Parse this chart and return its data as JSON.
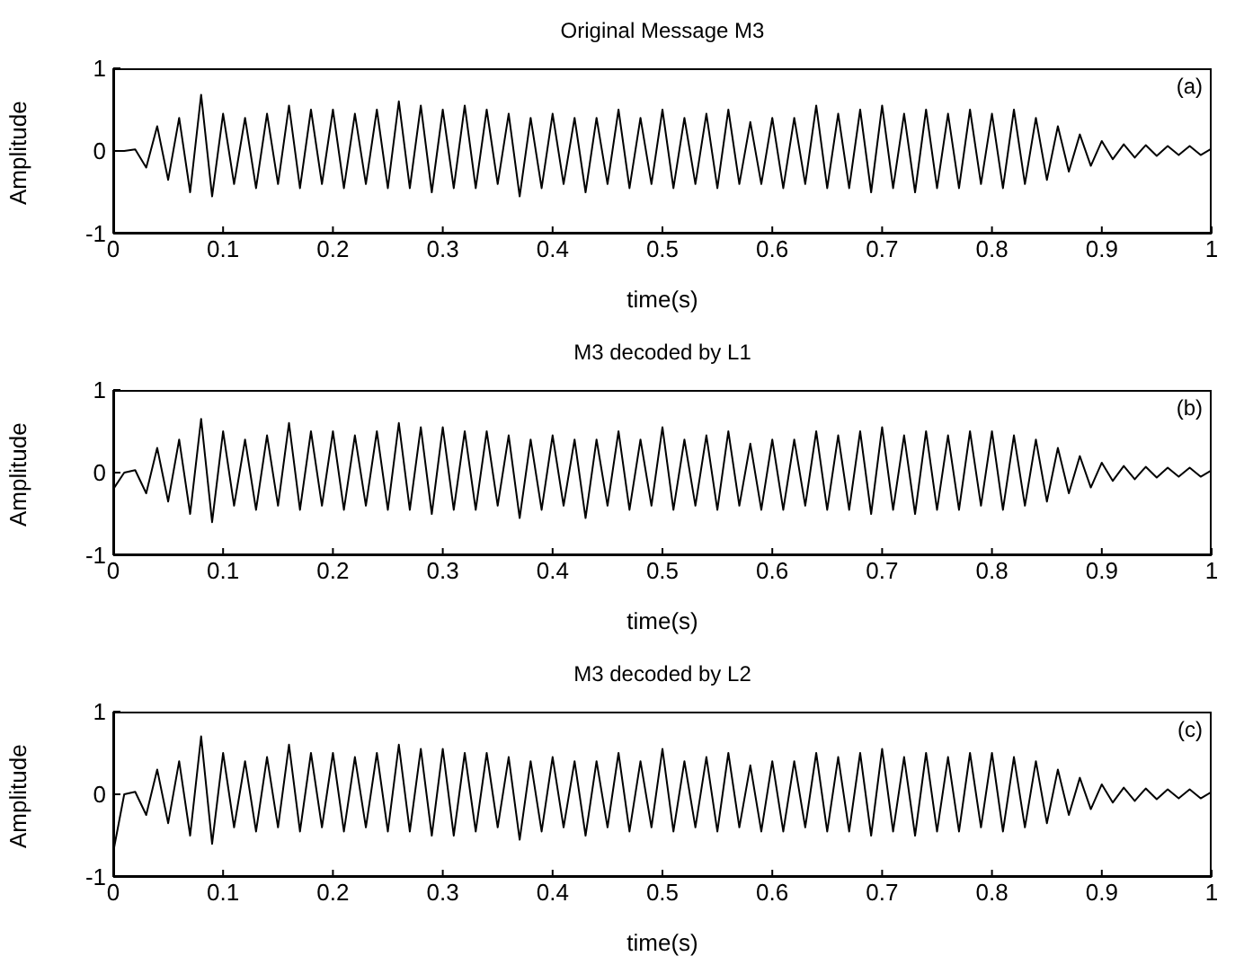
{
  "chart_data": [
    {
      "type": "line",
      "title": "Original Message M3",
      "xlabel": "time(s)",
      "ylabel": "Amplitude",
      "annotations": [
        "(a)"
      ],
      "xlim": [
        0,
        1
      ],
      "xticks": [
        0,
        0.1,
        0.2,
        0.3,
        0.4,
        0.5,
        0.6,
        0.7,
        0.8,
        0.9,
        1
      ],
      "ylim": [
        -1,
        1
      ],
      "yticks": [
        -1,
        0,
        1
      ],
      "grid": false,
      "legend": false,
      "marker": "none",
      "x": [
        0,
        0.01,
        0.02,
        0.03,
        0.04,
        0.05,
        0.06,
        0.07,
        0.08,
        0.09,
        0.1,
        0.11,
        0.12,
        0.13,
        0.14,
        0.15,
        0.16,
        0.17,
        0.18,
        0.19,
        0.2,
        0.21,
        0.22,
        0.23,
        0.24,
        0.25,
        0.26,
        0.27,
        0.28,
        0.29,
        0.3,
        0.31,
        0.32,
        0.33,
        0.34,
        0.35,
        0.36,
        0.37,
        0.38,
        0.39,
        0.4,
        0.41,
        0.42,
        0.43,
        0.44,
        0.45,
        0.46,
        0.47,
        0.48,
        0.49,
        0.5,
        0.51,
        0.52,
        0.53,
        0.54,
        0.55,
        0.56,
        0.57,
        0.58,
        0.59,
        0.6,
        0.61,
        0.62,
        0.63,
        0.64,
        0.65,
        0.66,
        0.67,
        0.68,
        0.69,
        0.7,
        0.71,
        0.72,
        0.73,
        0.74,
        0.75,
        0.76,
        0.77,
        0.78,
        0.79,
        0.8,
        0.81,
        0.82,
        0.83,
        0.84,
        0.85,
        0.86,
        0.87,
        0.88,
        0.89,
        0.9,
        0.91,
        0.92,
        0.93,
        0.94,
        0.95,
        0.96,
        0.97,
        0.98,
        0.99,
        1
      ],
      "series": [
        {
          "color": "#000000",
          "values": [
            0,
            0,
            0.02,
            -0.2,
            0.3,
            -0.35,
            0.4,
            -0.5,
            0.68,
            -0.55,
            0.45,
            -0.4,
            0.4,
            -0.45,
            0.45,
            -0.4,
            0.55,
            -0.45,
            0.5,
            -0.4,
            0.5,
            -0.45,
            0.45,
            -0.4,
            0.5,
            -0.45,
            0.6,
            -0.45,
            0.55,
            -0.5,
            0.5,
            -0.45,
            0.55,
            -0.45,
            0.5,
            -0.4,
            0.45,
            -0.55,
            0.4,
            -0.45,
            0.45,
            -0.4,
            0.4,
            -0.5,
            0.4,
            -0.4,
            0.5,
            -0.45,
            0.4,
            -0.4,
            0.5,
            -0.45,
            0.4,
            -0.4,
            0.45,
            -0.45,
            0.5,
            -0.4,
            0.35,
            -0.4,
            0.4,
            -0.45,
            0.4,
            -0.4,
            0.55,
            -0.45,
            0.45,
            -0.45,
            0.5,
            -0.5,
            0.55,
            -0.45,
            0.45,
            -0.5,
            0.5,
            -0.45,
            0.45,
            -0.45,
            0.5,
            -0.4,
            0.45,
            -0.45,
            0.5,
            -0.4,
            0.4,
            -0.35,
            0.3,
            -0.25,
            0.2,
            -0.18,
            0.12,
            -0.1,
            0.08,
            -0.08,
            0.07,
            -0.06,
            0.06,
            -0.05,
            0.06,
            -0.05,
            0.03
          ]
        }
      ]
    },
    {
      "type": "line",
      "title": "M3 decoded by L1",
      "xlabel": "time(s)",
      "ylabel": "Amplitude",
      "annotations": [
        "(b)"
      ],
      "xlim": [
        0,
        1
      ],
      "xticks": [
        0,
        0.1,
        0.2,
        0.3,
        0.4,
        0.5,
        0.6,
        0.7,
        0.8,
        0.9,
        1
      ],
      "ylim": [
        -1,
        1
      ],
      "yticks": [
        -1,
        0,
        1
      ],
      "grid": false,
      "legend": false,
      "marker": "none",
      "x": [
        0,
        0.01,
        0.02,
        0.03,
        0.04,
        0.05,
        0.06,
        0.07,
        0.08,
        0.09,
        0.1,
        0.11,
        0.12,
        0.13,
        0.14,
        0.15,
        0.16,
        0.17,
        0.18,
        0.19,
        0.2,
        0.21,
        0.22,
        0.23,
        0.24,
        0.25,
        0.26,
        0.27,
        0.28,
        0.29,
        0.3,
        0.31,
        0.32,
        0.33,
        0.34,
        0.35,
        0.36,
        0.37,
        0.38,
        0.39,
        0.4,
        0.41,
        0.42,
        0.43,
        0.44,
        0.45,
        0.46,
        0.47,
        0.48,
        0.49,
        0.5,
        0.51,
        0.52,
        0.53,
        0.54,
        0.55,
        0.56,
        0.57,
        0.58,
        0.59,
        0.6,
        0.61,
        0.62,
        0.63,
        0.64,
        0.65,
        0.66,
        0.67,
        0.68,
        0.69,
        0.7,
        0.71,
        0.72,
        0.73,
        0.74,
        0.75,
        0.76,
        0.77,
        0.78,
        0.79,
        0.8,
        0.81,
        0.82,
        0.83,
        0.84,
        0.85,
        0.86,
        0.87,
        0.88,
        0.89,
        0.9,
        0.91,
        0.92,
        0.93,
        0.94,
        0.95,
        0.96,
        0.97,
        0.98,
        0.99,
        1
      ],
      "series": [
        {
          "color": "#000000",
          "values": [
            -0.2,
            0,
            0.03,
            -0.25,
            0.3,
            -0.35,
            0.4,
            -0.5,
            0.65,
            -0.6,
            0.5,
            -0.4,
            0.4,
            -0.45,
            0.45,
            -0.4,
            0.6,
            -0.45,
            0.5,
            -0.4,
            0.5,
            -0.45,
            0.45,
            -0.4,
            0.5,
            -0.45,
            0.6,
            -0.45,
            0.55,
            -0.5,
            0.55,
            -0.45,
            0.5,
            -0.45,
            0.5,
            -0.4,
            0.45,
            -0.55,
            0.4,
            -0.45,
            0.45,
            -0.4,
            0.4,
            -0.55,
            0.4,
            -0.4,
            0.5,
            -0.45,
            0.4,
            -0.4,
            0.55,
            -0.45,
            0.4,
            -0.4,
            0.45,
            -0.45,
            0.5,
            -0.4,
            0.35,
            -0.45,
            0.4,
            -0.45,
            0.4,
            -0.4,
            0.5,
            -0.45,
            0.45,
            -0.45,
            0.5,
            -0.5,
            0.55,
            -0.45,
            0.45,
            -0.5,
            0.5,
            -0.45,
            0.45,
            -0.45,
            0.5,
            -0.4,
            0.5,
            -0.45,
            0.45,
            -0.4,
            0.4,
            -0.35,
            0.3,
            -0.25,
            0.2,
            -0.18,
            0.12,
            -0.1,
            0.08,
            -0.08,
            0.07,
            -0.06,
            0.06,
            -0.05,
            0.06,
            -0.05,
            0.03
          ]
        }
      ]
    },
    {
      "type": "line",
      "title": "M3 decoded by L2",
      "xlabel": "time(s)",
      "ylabel": "Amplitude",
      "annotations": [
        "(c)"
      ],
      "xlim": [
        0,
        1
      ],
      "xticks": [
        0,
        0.1,
        0.2,
        0.3,
        0.4,
        0.5,
        0.6,
        0.7,
        0.8,
        0.9,
        1
      ],
      "ylim": [
        -1,
        1
      ],
      "yticks": [
        -1,
        0,
        1
      ],
      "grid": false,
      "legend": false,
      "marker": "none",
      "x": [
        0,
        0.01,
        0.02,
        0.03,
        0.04,
        0.05,
        0.06,
        0.07,
        0.08,
        0.09,
        0.1,
        0.11,
        0.12,
        0.13,
        0.14,
        0.15,
        0.16,
        0.17,
        0.18,
        0.19,
        0.2,
        0.21,
        0.22,
        0.23,
        0.24,
        0.25,
        0.26,
        0.27,
        0.28,
        0.29,
        0.3,
        0.31,
        0.32,
        0.33,
        0.34,
        0.35,
        0.36,
        0.37,
        0.38,
        0.39,
        0.4,
        0.41,
        0.42,
        0.43,
        0.44,
        0.45,
        0.46,
        0.47,
        0.48,
        0.49,
        0.5,
        0.51,
        0.52,
        0.53,
        0.54,
        0.55,
        0.56,
        0.57,
        0.58,
        0.59,
        0.6,
        0.61,
        0.62,
        0.63,
        0.64,
        0.65,
        0.66,
        0.67,
        0.68,
        0.69,
        0.7,
        0.71,
        0.72,
        0.73,
        0.74,
        0.75,
        0.76,
        0.77,
        0.78,
        0.79,
        0.8,
        0.81,
        0.82,
        0.83,
        0.84,
        0.85,
        0.86,
        0.87,
        0.88,
        0.89,
        0.9,
        0.91,
        0.92,
        0.93,
        0.94,
        0.95,
        0.96,
        0.97,
        0.98,
        0.99,
        1
      ],
      "series": [
        {
          "color": "#000000",
          "values": [
            -0.7,
            0,
            0.03,
            -0.25,
            0.3,
            -0.35,
            0.4,
            -0.5,
            0.7,
            -0.6,
            0.5,
            -0.4,
            0.4,
            -0.45,
            0.45,
            -0.4,
            0.6,
            -0.45,
            0.5,
            -0.4,
            0.5,
            -0.45,
            0.45,
            -0.4,
            0.5,
            -0.45,
            0.6,
            -0.45,
            0.55,
            -0.5,
            0.55,
            -0.5,
            0.5,
            -0.45,
            0.5,
            -0.4,
            0.45,
            -0.55,
            0.4,
            -0.45,
            0.45,
            -0.4,
            0.4,
            -0.5,
            0.4,
            -0.4,
            0.5,
            -0.45,
            0.4,
            -0.4,
            0.55,
            -0.45,
            0.4,
            -0.4,
            0.45,
            -0.45,
            0.5,
            -0.4,
            0.35,
            -0.45,
            0.4,
            -0.45,
            0.4,
            -0.4,
            0.5,
            -0.45,
            0.45,
            -0.45,
            0.5,
            -0.5,
            0.55,
            -0.45,
            0.45,
            -0.5,
            0.5,
            -0.45,
            0.45,
            -0.45,
            0.5,
            -0.4,
            0.5,
            -0.45,
            0.45,
            -0.4,
            0.4,
            -0.35,
            0.3,
            -0.25,
            0.2,
            -0.18,
            0.12,
            -0.1,
            0.08,
            -0.08,
            0.07,
            -0.06,
            0.06,
            -0.05,
            0.06,
            -0.05,
            0.03
          ]
        }
      ]
    }
  ]
}
